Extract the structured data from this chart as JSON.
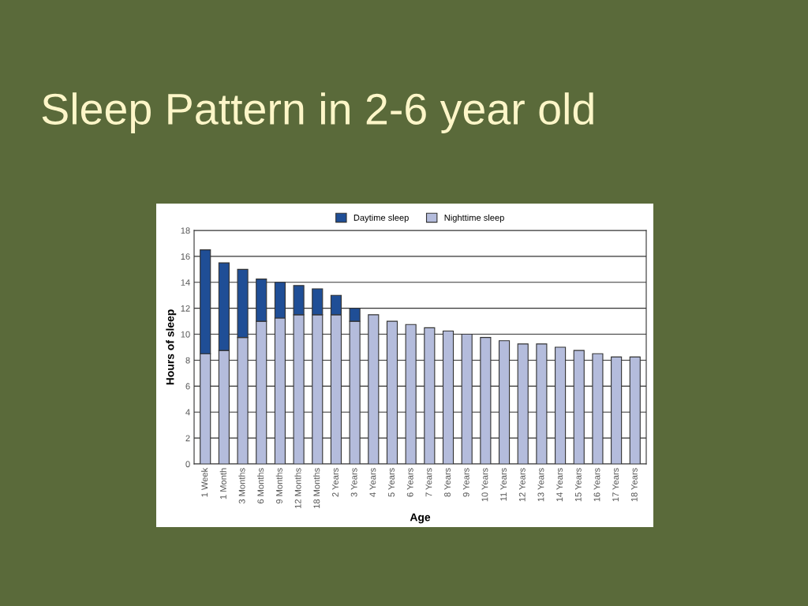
{
  "chart_data": {
    "type": "bar",
    "title": "Sleep Pattern in 2-6 year old",
    "xlabel": "Age",
    "ylabel": "Hours of sleep",
    "categories": [
      "1 Week",
      "1 Month",
      "3 Months",
      "6 Months",
      "9 Months",
      "12 Months",
      "18 Months",
      "2 Years",
      "3 Years",
      "4 Years",
      "5 Years",
      "6 Years",
      "7 Years",
      "8 Years",
      "9 Years",
      "10 Years",
      "11 Years",
      "12 Years",
      "13 Years",
      "14 Years",
      "15 Years",
      "16 Years",
      "17 Years",
      "18 Years"
    ],
    "stacked": true,
    "series": [
      {
        "name": "Nighttime sleep",
        "color": "#b4bcdc",
        "values": [
          8.5,
          8.75,
          9.75,
          11,
          11.25,
          11.5,
          11.5,
          11.5,
          11,
          11.5,
          11,
          10.75,
          10.5,
          10.25,
          10,
          9.75,
          9.5,
          9.25,
          9.25,
          9,
          8.75,
          8.5,
          8.25,
          8.25
        ]
      },
      {
        "name": "Daytime sleep",
        "color": "#1f4e96",
        "values": [
          8,
          6.75,
          5.25,
          3.25,
          2.75,
          2.25,
          2,
          1.5,
          1,
          null,
          null,
          null,
          null,
          null,
          null,
          null,
          null,
          null,
          null,
          null,
          null,
          null,
          null,
          null
        ]
      }
    ],
    "ylim": [
      0,
      18
    ],
    "yticks": [
      0,
      2,
      4,
      6,
      8,
      10,
      12,
      14,
      16,
      18
    ],
    "grid": "y",
    "legend": "top"
  }
}
